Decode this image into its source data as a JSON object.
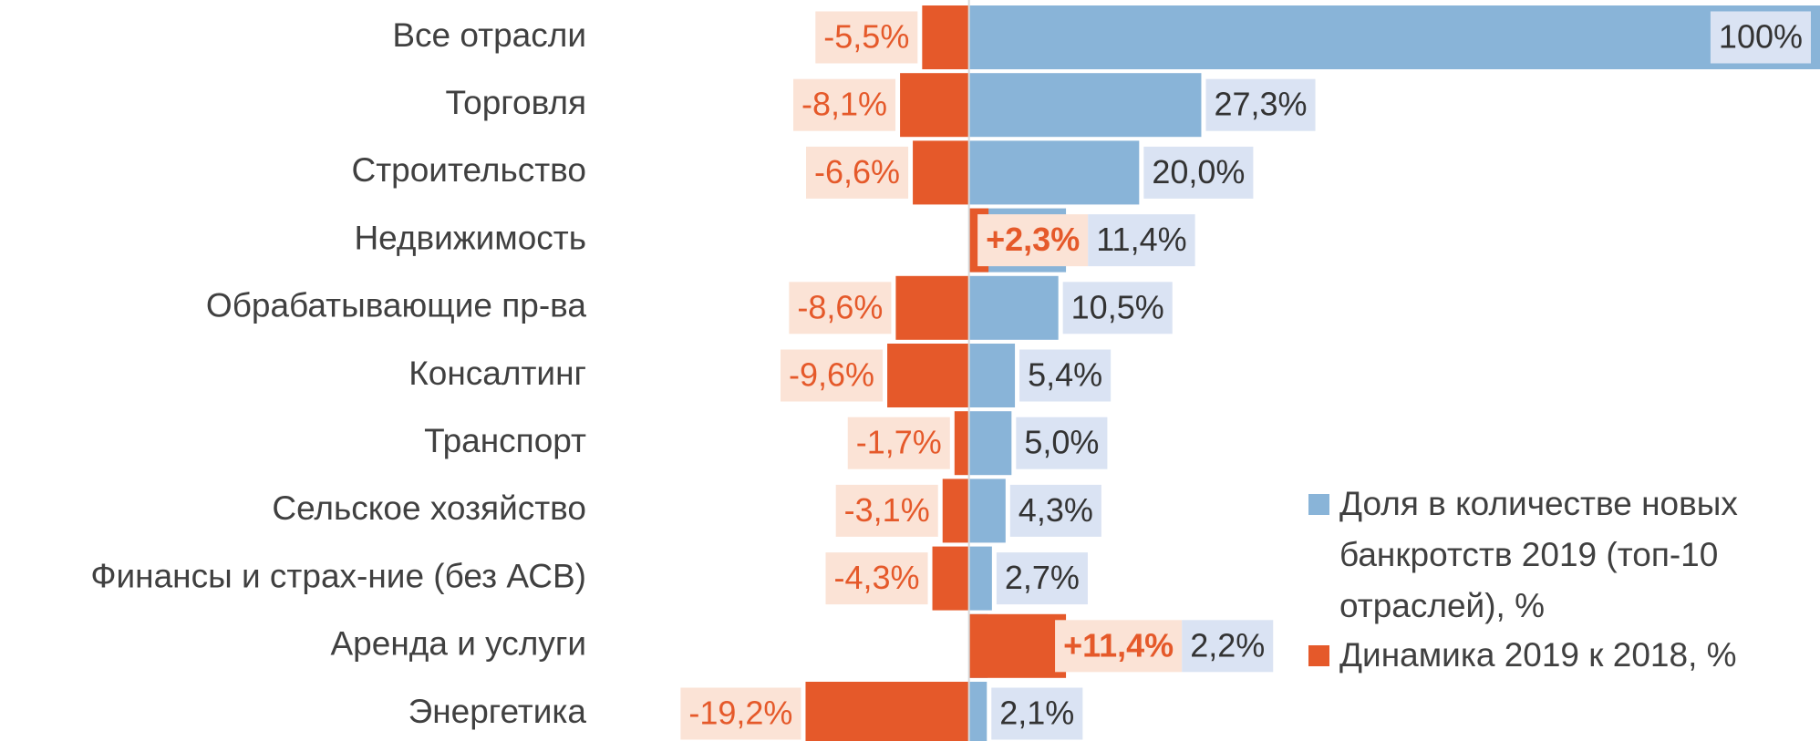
{
  "chart_data": {
    "type": "bar",
    "orientation": "horizontal",
    "categories": [
      "Все отрасли",
      "Торговля",
      "Строительство",
      "Недвижимость",
      "Обрабатывающие пр-ва",
      "Консалтинг",
      "Транспорт",
      "Сельское хозяйство",
      "Финансы и страх-ние (без АСВ)",
      "Аренда и услуги",
      "Энергетика"
    ],
    "series": [
      {
        "name": "Доля в количестве новых банкротств 2019 (топ-10 отраслей), %",
        "color": "#89b4d8",
        "values": [
          100,
          27.3,
          20.0,
          11.4,
          10.5,
          5.4,
          5.0,
          4.3,
          2.7,
          2.2,
          2.1
        ],
        "value_labels": [
          "100%",
          "27,3%",
          "20,0%",
          "11,4%",
          "10,5%",
          "5,4%",
          "5,0%",
          "4,3%",
          "2,7%",
          "2,2%",
          "2,1%"
        ]
      },
      {
        "name": "Динамика 2019 к 2018, %",
        "color": "#e5592a",
        "values": [
          -5.5,
          -8.1,
          -6.6,
          2.3,
          -8.6,
          -9.6,
          -1.7,
          -3.1,
          -4.3,
          11.4,
          -19.2
        ],
        "value_labels": [
          "-5,5%",
          "-8,1%",
          "-6,6%",
          "+2,3%",
          "-8,6%",
          "-9,6%",
          "-1,7%",
          "-3,1%",
          "-4,3%",
          "+11,4%",
          "-19,2%"
        ]
      }
    ],
    "xlim": [
      -35,
      100
    ],
    "legend": "right"
  }
}
